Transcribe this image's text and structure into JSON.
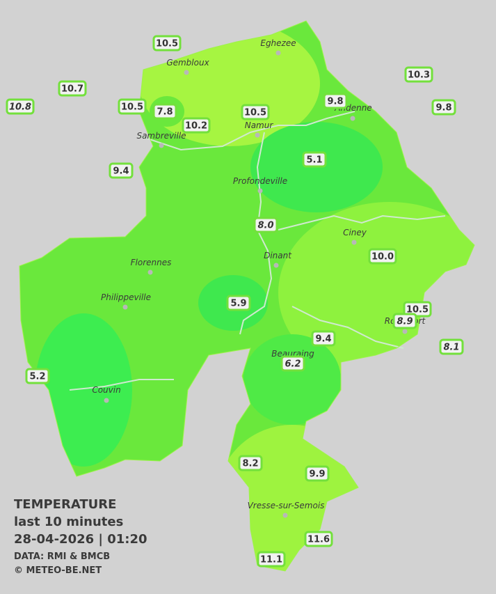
{
  "legend": {
    "title": "TEMPERATURE",
    "subtitle": "last 10 minutes",
    "datetime": "28-04-2026  |  01:20",
    "source": "DATA: RMI & BMCB",
    "credit": "© METEO-BE.NET"
  },
  "cities": [
    {
      "name": "Eghezee"
    },
    {
      "name": "Gembloux"
    },
    {
      "name": "Andenne"
    },
    {
      "name": "Sambreville"
    },
    {
      "name": "Namur"
    },
    {
      "name": "Profondeville"
    },
    {
      "name": "Ciney"
    },
    {
      "name": "Florennes"
    },
    {
      "name": "Dinant"
    },
    {
      "name": "Philippeville"
    },
    {
      "name": "Rochefort"
    },
    {
      "name": "Beauraing"
    },
    {
      "name": "Couvin"
    },
    {
      "name": "Vresse-sur-Semois"
    }
  ],
  "stations": [
    {
      "value": "10.5"
    },
    {
      "value": "10.7"
    },
    {
      "value": "10.8",
      "italic": true
    },
    {
      "value": "10.5"
    },
    {
      "value": "7.8"
    },
    {
      "value": "10.2"
    },
    {
      "value": "10.5"
    },
    {
      "value": "9.8"
    },
    {
      "value": "10.3"
    },
    {
      "value": "9.8"
    },
    {
      "value": "9.4"
    },
    {
      "value": "5.1"
    },
    {
      "value": "8.0",
      "italic": true
    },
    {
      "value": "10.0"
    },
    {
      "value": "5.9"
    },
    {
      "value": "10.5"
    },
    {
      "value": "8.9",
      "italic": true
    },
    {
      "value": "9.4"
    },
    {
      "value": "8.1",
      "italic": true
    },
    {
      "value": "6.2",
      "italic": true
    },
    {
      "value": "5.2"
    },
    {
      "value": "8.2"
    },
    {
      "value": "9.9"
    },
    {
      "value": "11.6"
    },
    {
      "value": "11.1"
    }
  ]
}
